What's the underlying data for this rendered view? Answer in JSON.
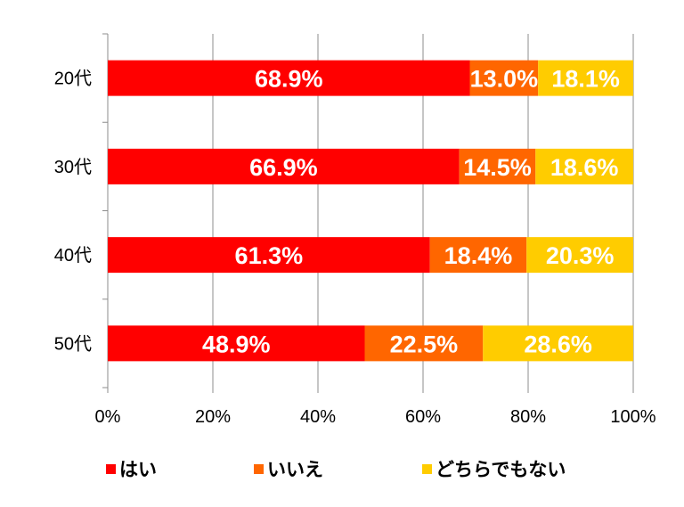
{
  "chart_data": {
    "type": "bar",
    "orientation": "horizontal",
    "stacked": true,
    "categories": [
      "20代",
      "30代",
      "40代",
      "50代"
    ],
    "series": [
      {
        "name": "はい",
        "color": "#ff0000",
        "values": [
          68.9,
          66.9,
          61.3,
          48.9
        ],
        "labels": [
          "68.9%",
          "66.9%",
          "61.3%",
          "48.9%"
        ]
      },
      {
        "name": "いいえ",
        "color": "#ff6600",
        "values": [
          13.0,
          14.5,
          18.4,
          22.5
        ],
        "labels": [
          "13.0%",
          "14.5%",
          "18.4%",
          "22.5%"
        ]
      },
      {
        "name": "どちらでもない",
        "color": "#ffcc00",
        "values": [
          18.1,
          18.6,
          20.3,
          28.6
        ],
        "labels": [
          "18.1%",
          "18.6%",
          "20.3%",
          "28.6%"
        ]
      }
    ],
    "x_ticks": [
      "0%",
      "20%",
      "40%",
      "60%",
      "80%",
      "100%"
    ],
    "xlim": [
      0,
      100
    ],
    "grid": true,
    "legend_position": "bottom"
  }
}
